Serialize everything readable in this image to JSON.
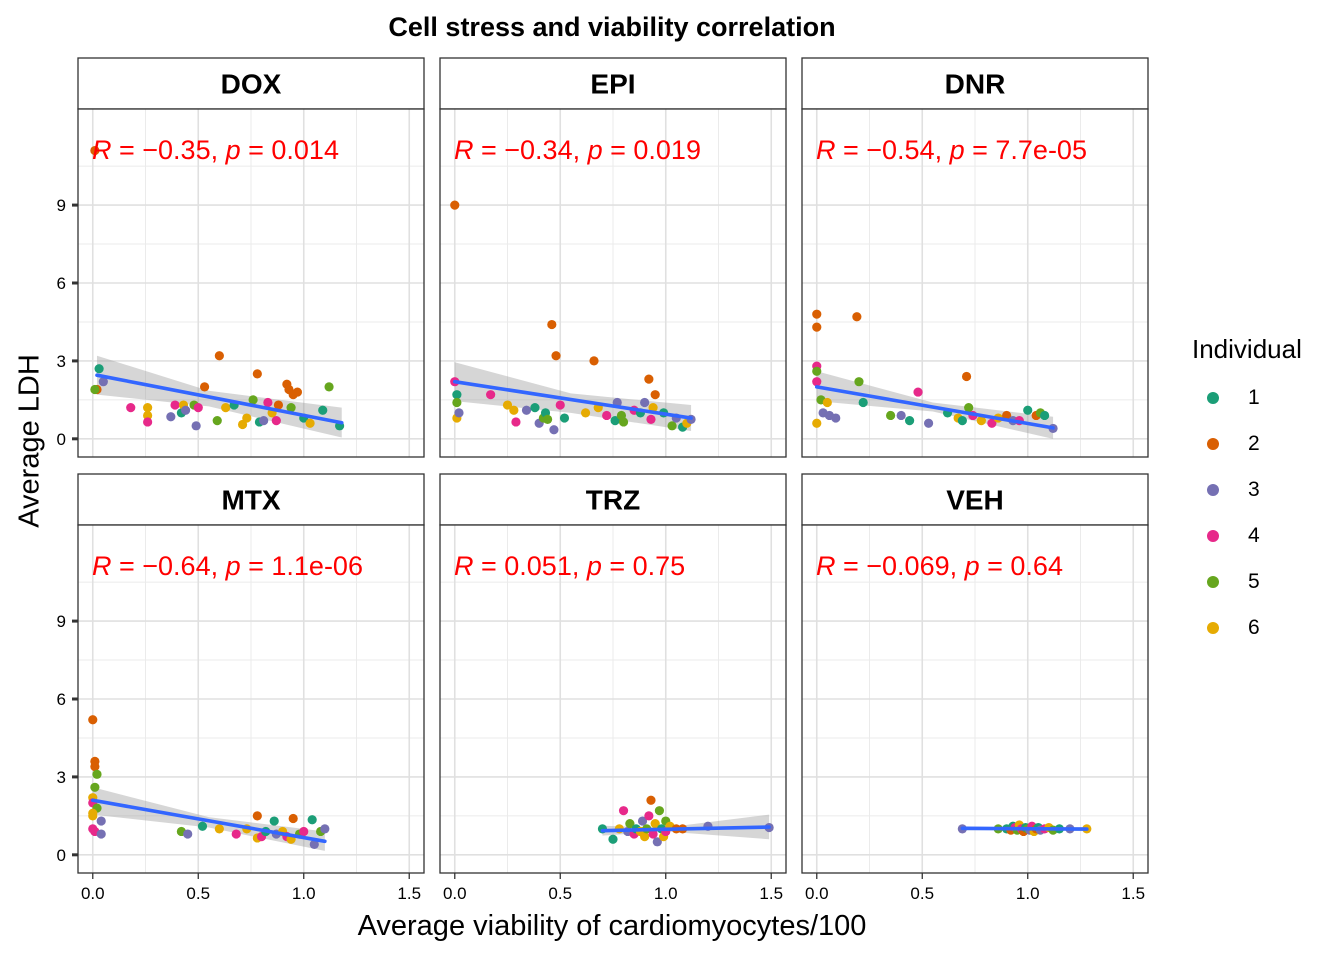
{
  "chart_data": {
    "type": "scatter",
    "title": "Cell stress and viability correlation",
    "xlabel": "Average viability of cardiomyocytes/100",
    "ylabel": "Average LDH",
    "xlim": [
      -0.07,
      1.57
    ],
    "ylim": [
      -0.7,
      12.7
    ],
    "x_ticks": [
      "0.0",
      "0.5",
      "1.0",
      "1.5"
    ],
    "y_ticks": [
      "0",
      "3",
      "6",
      "9"
    ],
    "grid": true,
    "legend": {
      "title": "Individual",
      "placement": "right",
      "items": [
        {
          "label": "1",
          "color": "#1B9E77"
        },
        {
          "label": "2",
          "color": "#D95F02"
        },
        {
          "label": "3",
          "color": "#7570B3"
        },
        {
          "label": "4",
          "color": "#E7298A"
        },
        {
          "label": "5",
          "color": "#66A61E"
        },
        {
          "label": "6",
          "color": "#E6AB02"
        }
      ]
    },
    "fit_color": "#3366FF",
    "annotation_color": "#FF0000",
    "panels": [
      {
        "name": "DOX",
        "annotation": {
          "r": "−0.35",
          "p": "0.014"
        },
        "fit": [
          [
            0.02,
            2.45
          ],
          [
            1.18,
            0.62
          ]
        ],
        "band": [
          [
            0.02,
            3.2,
            1.7
          ],
          [
            0.55,
            1.85,
            1.25
          ],
          [
            1.18,
            1.2,
            0.05
          ]
        ],
        "points": [
          [
            0.01,
            11.1,
            2
          ],
          [
            0.02,
            1.9,
            2
          ],
          [
            0.03,
            2.7,
            1
          ],
          [
            0.05,
            2.2,
            3
          ],
          [
            0.01,
            1.9,
            5
          ],
          [
            0.18,
            1.2,
            4
          ],
          [
            0.26,
            1.2,
            6
          ],
          [
            0.26,
            0.9,
            6
          ],
          [
            0.26,
            0.65,
            4
          ],
          [
            0.37,
            0.85,
            3
          ],
          [
            0.39,
            1.3,
            4
          ],
          [
            0.42,
            1.0,
            1
          ],
          [
            0.43,
            1.3,
            6
          ],
          [
            0.44,
            1.1,
            3
          ],
          [
            0.48,
            1.3,
            5
          ],
          [
            0.49,
            0.5,
            3
          ],
          [
            0.5,
            1.2,
            4
          ],
          [
            0.53,
            2.0,
            2
          ],
          [
            0.59,
            0.7,
            5
          ],
          [
            0.6,
            3.2,
            2
          ],
          [
            0.63,
            1.2,
            6
          ],
          [
            0.67,
            1.3,
            1
          ],
          [
            0.71,
            0.55,
            6
          ],
          [
            0.73,
            0.8,
            6
          ],
          [
            0.76,
            1.5,
            5
          ],
          [
            0.78,
            2.5,
            2
          ],
          [
            0.79,
            0.65,
            1
          ],
          [
            0.81,
            0.7,
            3
          ],
          [
            0.83,
            1.4,
            4
          ],
          [
            0.85,
            1.0,
            6
          ],
          [
            0.87,
            0.7,
            4
          ],
          [
            0.88,
            1.3,
            2
          ],
          [
            0.92,
            2.1,
            2
          ],
          [
            0.93,
            1.9,
            2
          ],
          [
            0.95,
            1.7,
            2
          ],
          [
            0.97,
            1.8,
            2
          ],
          [
            0.94,
            1.2,
            5
          ],
          [
            1.0,
            0.8,
            1
          ],
          [
            1.03,
            0.6,
            6
          ],
          [
            1.09,
            1.1,
            1
          ],
          [
            1.12,
            2.0,
            5
          ],
          [
            1.17,
            0.5,
            1
          ]
        ]
      },
      {
        "name": "EPI",
        "annotation": {
          "r": "−0.34",
          "p": "0.019"
        },
        "fit": [
          [
            0.0,
            2.2
          ],
          [
            1.12,
            0.8
          ]
        ],
        "band": [
          [
            0.0,
            2.95,
            1.45
          ],
          [
            0.55,
            1.75,
            1.0
          ],
          [
            1.12,
            1.3,
            0.3
          ]
        ],
        "points": [
          [
            0.0,
            9.0,
            2
          ],
          [
            0.0,
            2.2,
            4
          ],
          [
            0.01,
            1.7,
            1
          ],
          [
            0.01,
            1.4,
            5
          ],
          [
            0.01,
            0.8,
            6
          ],
          [
            0.02,
            1.0,
            3
          ],
          [
            0.17,
            1.7,
            4
          ],
          [
            0.25,
            1.3,
            6
          ],
          [
            0.28,
            1.1,
            6
          ],
          [
            0.29,
            0.65,
            4
          ],
          [
            0.34,
            1.1,
            3
          ],
          [
            0.38,
            1.2,
            1
          ],
          [
            0.4,
            0.6,
            3
          ],
          [
            0.42,
            0.8,
            5
          ],
          [
            0.43,
            1.0,
            1
          ],
          [
            0.44,
            0.75,
            5
          ],
          [
            0.46,
            4.4,
            2
          ],
          [
            0.47,
            0.35,
            3
          ],
          [
            0.48,
            3.2,
            2
          ],
          [
            0.5,
            1.3,
            4
          ],
          [
            0.52,
            0.8,
            1
          ],
          [
            0.62,
            1.0,
            6
          ],
          [
            0.66,
            3.0,
            2
          ],
          [
            0.68,
            1.2,
            6
          ],
          [
            0.72,
            0.9,
            4
          ],
          [
            0.76,
            0.7,
            1
          ],
          [
            0.77,
            1.4,
            3
          ],
          [
            0.79,
            0.9,
            5
          ],
          [
            0.8,
            0.65,
            5
          ],
          [
            0.85,
            1.1,
            4
          ],
          [
            0.88,
            1.0,
            1
          ],
          [
            0.9,
            1.4,
            3
          ],
          [
            0.92,
            2.3,
            2
          ],
          [
            0.93,
            0.75,
            4
          ],
          [
            0.94,
            1.2,
            6
          ],
          [
            0.95,
            1.7,
            2
          ],
          [
            0.99,
            1.0,
            1
          ],
          [
            1.03,
            0.5,
            5
          ],
          [
            1.05,
            0.8,
            3
          ],
          [
            1.08,
            0.45,
            1
          ],
          [
            1.1,
            0.6,
            6
          ],
          [
            1.12,
            0.75,
            3
          ]
        ]
      },
      {
        "name": "DNR",
        "annotation": {
          "r": "−0.54",
          "p": "7.7e-05"
        },
        "fit": [
          [
            0.0,
            2.0
          ],
          [
            1.12,
            0.42
          ]
        ],
        "band": [
          [
            0.0,
            2.6,
            1.45
          ],
          [
            0.55,
            1.4,
            1.05
          ],
          [
            1.12,
            0.85,
            0.0
          ]
        ],
        "points": [
          [
            0.0,
            4.8,
            2
          ],
          [
            0.0,
            4.3,
            2
          ],
          [
            0.0,
            2.8,
            4
          ],
          [
            0.0,
            2.6,
            5
          ],
          [
            0.0,
            2.2,
            4
          ],
          [
            0.0,
            0.6,
            6
          ],
          [
            0.02,
            1.5,
            5
          ],
          [
            0.03,
            1.0,
            3
          ],
          [
            0.05,
            1.4,
            6
          ],
          [
            0.06,
            0.9,
            3
          ],
          [
            0.09,
            0.8,
            3
          ],
          [
            0.19,
            4.7,
            2
          ],
          [
            0.2,
            2.2,
            5
          ],
          [
            0.22,
            1.4,
            1
          ],
          [
            0.35,
            0.9,
            5
          ],
          [
            0.4,
            0.9,
            3
          ],
          [
            0.44,
            0.7,
            1
          ],
          [
            0.48,
            1.8,
            4
          ],
          [
            0.53,
            0.6,
            3
          ],
          [
            0.62,
            1.0,
            1
          ],
          [
            0.67,
            0.8,
            6
          ],
          [
            0.69,
            0.7,
            1
          ],
          [
            0.71,
            2.4,
            2
          ],
          [
            0.72,
            1.2,
            5
          ],
          [
            0.74,
            0.9,
            4
          ],
          [
            0.78,
            0.7,
            6
          ],
          [
            0.83,
            0.6,
            4
          ],
          [
            0.86,
            0.8,
            6
          ],
          [
            0.9,
            0.9,
            2
          ],
          [
            0.93,
            0.7,
            3
          ],
          [
            0.96,
            0.7,
            4
          ],
          [
            1.0,
            1.1,
            1
          ],
          [
            1.04,
            0.9,
            2
          ],
          [
            1.06,
            1.0,
            5
          ],
          [
            1.08,
            0.9,
            1
          ],
          [
            1.12,
            0.4,
            3
          ]
        ]
      },
      {
        "name": "MTX",
        "annotation": {
          "r": "−0.64",
          "p": "1.1e-06"
        },
        "fit": [
          [
            0.0,
            2.1
          ],
          [
            1.1,
            0.52
          ]
        ],
        "band": [
          [
            0.0,
            2.6,
            1.55
          ],
          [
            0.55,
            1.45,
            1.05
          ],
          [
            1.1,
            0.9,
            0.15
          ]
        ],
        "points": [
          [
            0.0,
            5.2,
            2
          ],
          [
            0.01,
            3.6,
            2
          ],
          [
            0.01,
            3.4,
            2
          ],
          [
            0.01,
            2.6,
            5
          ],
          [
            0.0,
            2.2,
            6
          ],
          [
            0.0,
            2.0,
            4
          ],
          [
            0.02,
            3.1,
            5
          ],
          [
            0.02,
            1.8,
            5
          ],
          [
            0.0,
            1.6,
            6
          ],
          [
            0.0,
            1.5,
            6
          ],
          [
            0.0,
            1.0,
            4
          ],
          [
            0.01,
            0.9,
            4
          ],
          [
            0.04,
            1.3,
            3
          ],
          [
            0.04,
            0.8,
            3
          ],
          [
            0.42,
            0.9,
            5
          ],
          [
            0.45,
            0.8,
            3
          ],
          [
            0.52,
            1.1,
            1
          ],
          [
            0.6,
            1.0,
            6
          ],
          [
            0.68,
            0.8,
            4
          ],
          [
            0.73,
            1.0,
            6
          ],
          [
            0.78,
            1.5,
            2
          ],
          [
            0.78,
            0.65,
            6
          ],
          [
            0.8,
            0.7,
            4
          ],
          [
            0.82,
            0.9,
            1
          ],
          [
            0.86,
            1.3,
            1
          ],
          [
            0.87,
            0.8,
            3
          ],
          [
            0.9,
            0.9,
            6
          ],
          [
            0.92,
            0.7,
            4
          ],
          [
            0.94,
            0.6,
            6
          ],
          [
            0.95,
            1.4,
            2
          ],
          [
            0.98,
            0.8,
            5
          ],
          [
            1.0,
            0.9,
            4
          ],
          [
            1.04,
            1.35,
            1
          ],
          [
            1.05,
            0.4,
            3
          ],
          [
            1.08,
            0.9,
            5
          ],
          [
            1.1,
            1.0,
            3
          ]
        ]
      },
      {
        "name": "TRZ",
        "annotation": {
          "r": "0.051",
          "p": "0.75"
        },
        "fit": [
          [
            0.7,
            0.93
          ],
          [
            1.49,
            1.07
          ]
        ],
        "band": [
          [
            0.7,
            1.12,
            0.74
          ],
          [
            1.0,
            1.05,
            0.9
          ],
          [
            1.49,
            1.55,
            0.6
          ]
        ],
        "points": [
          [
            0.7,
            1.0,
            1
          ],
          [
            0.75,
            0.6,
            1
          ],
          [
            0.78,
            1.0,
            6
          ],
          [
            0.8,
            1.7,
            4
          ],
          [
            0.82,
            0.9,
            3
          ],
          [
            0.83,
            1.2,
            5
          ],
          [
            0.85,
            0.8,
            4
          ],
          [
            0.86,
            1.0,
            1
          ],
          [
            0.88,
            0.9,
            6
          ],
          [
            0.89,
            1.3,
            3
          ],
          [
            0.9,
            0.7,
            6
          ],
          [
            0.91,
            1.0,
            5
          ],
          [
            0.92,
            1.5,
            4
          ],
          [
            0.93,
            2.1,
            2
          ],
          [
            0.94,
            0.8,
            4
          ],
          [
            0.95,
            1.2,
            6
          ],
          [
            0.96,
            0.5,
            3
          ],
          [
            0.97,
            1.7,
            5
          ],
          [
            0.98,
            1.0,
            1
          ],
          [
            0.99,
            0.7,
            6
          ],
          [
            1.0,
            1.3,
            5
          ],
          [
            1.0,
            0.9,
            4
          ],
          [
            1.02,
            1.1,
            6
          ],
          [
            1.05,
            1.0,
            2
          ],
          [
            1.08,
            1.0,
            2
          ],
          [
            1.2,
            1.1,
            3
          ],
          [
            1.49,
            1.05,
            3
          ]
        ]
      },
      {
        "name": "VEH",
        "annotation": {
          "r": "−0.069",
          "p": "0.64"
        },
        "fit": [
          [
            0.69,
            1.02
          ],
          [
            1.28,
            0.99
          ]
        ],
        "band": [
          [
            0.69,
            1.1,
            0.94
          ],
          [
            1.0,
            1.03,
            0.97
          ],
          [
            1.28,
            1.07,
            0.91
          ]
        ],
        "points": [
          [
            0.69,
            1.0,
            3
          ],
          [
            0.86,
            1.0,
            5
          ],
          [
            0.9,
            1.0,
            1
          ],
          [
            0.92,
            0.95,
            2
          ],
          [
            0.93,
            1.1,
            1
          ],
          [
            0.94,
            1.05,
            4
          ],
          [
            0.95,
            0.95,
            5
          ],
          [
            0.96,
            1.15,
            6
          ],
          [
            0.97,
            1.0,
            4
          ],
          [
            0.98,
            0.9,
            2
          ],
          [
            0.99,
            1.05,
            1
          ],
          [
            1.0,
            1.0,
            5
          ],
          [
            1.01,
            0.95,
            3
          ],
          [
            1.02,
            1.1,
            4
          ],
          [
            1.03,
            0.9,
            6
          ],
          [
            1.04,
            1.0,
            2
          ],
          [
            1.05,
            1.05,
            1
          ],
          [
            1.06,
            0.95,
            3
          ],
          [
            1.08,
            1.0,
            4
          ],
          [
            1.1,
            1.05,
            6
          ],
          [
            1.12,
            0.95,
            5
          ],
          [
            1.15,
            1.0,
            1
          ],
          [
            1.2,
            1.0,
            3
          ],
          [
            1.28,
            1.0,
            6
          ]
        ]
      }
    ]
  }
}
